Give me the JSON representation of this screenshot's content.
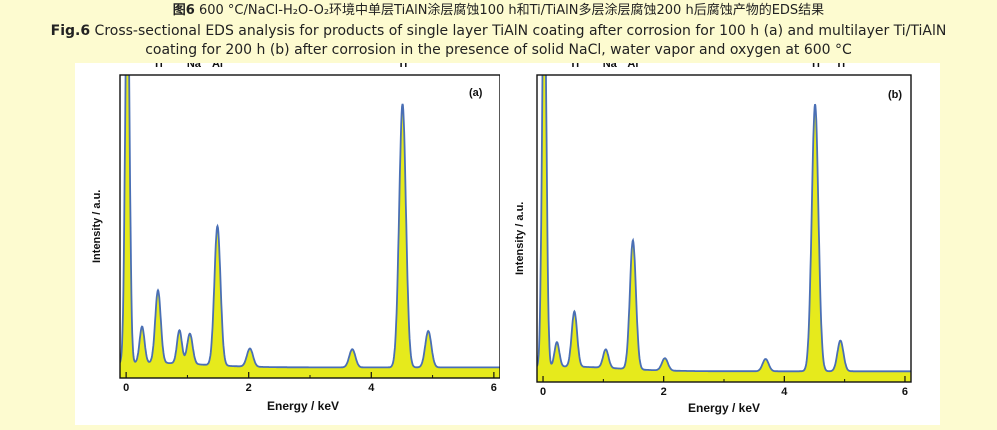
{
  "caption": {
    "cn_fig": "图6",
    "cn_text": "600 °C/NaCl-H₂O-O₂环境中单层TiAlN涂层腐蚀100 h和Ti/TiAlN多层涂层腐蚀200 h后腐蚀产物的EDS结果",
    "en_fig": "Fig.6",
    "en_line1": "Cross-sectional EDS analysis for products of single layer TiAlN coating after corrosion for 100 h (a) and multilayer Ti/TiAlN",
    "en_line2": "coating for 200 h (b) after corrosion in the presence of solid NaCl, water vapor and oxygen at 600 °C"
  },
  "colors": {
    "background": "#fdfbd0",
    "fill": "#e6ea1c",
    "outline": "#4a6fb5"
  },
  "chart_data": [
    {
      "type": "area",
      "panel": "(a)",
      "xlabel": "Energy / keV",
      "ylabel": "Intensity / a.u.",
      "xlim": [
        -0.1,
        6.1
      ],
      "ylim": [
        0,
        100
      ],
      "xticks": [
        0,
        2,
        4,
        6
      ],
      "peaks": [
        {
          "x": 0.02,
          "height": 135,
          "width": 0.035,
          "label": ""
        },
        {
          "x": 0.26,
          "height": 12,
          "width": 0.04,
          "label": ""
        },
        {
          "x": 0.52,
          "height": 24,
          "width": 0.045,
          "label": "O\nTi"
        },
        {
          "x": 0.87,
          "height": 11,
          "width": 0.04,
          "label": ""
        },
        {
          "x": 1.04,
          "height": 10,
          "width": 0.045,
          "label": "Na"
        },
        {
          "x": 1.49,
          "height": 46,
          "width": 0.05,
          "label": "Al"
        },
        {
          "x": 2.02,
          "height": 6,
          "width": 0.05,
          "label": ""
        },
        {
          "x": 3.69,
          "height": 6,
          "width": 0.05,
          "label": ""
        },
        {
          "x": 4.51,
          "height": 87,
          "width": 0.055,
          "label": "Ti"
        },
        {
          "x": 4.93,
          "height": 12,
          "width": 0.05,
          "label": ""
        }
      ]
    },
    {
      "type": "area",
      "panel": "(b)",
      "xlabel": "Energy / keV",
      "ylabel": "Intensity / a.u.",
      "xlim": [
        -0.1,
        6.1
      ],
      "ylim": [
        0,
        100
      ],
      "xticks": [
        0,
        2,
        4,
        6
      ],
      "peaks": [
        {
          "x": 0.02,
          "height": 135,
          "width": 0.035,
          "label": ""
        },
        {
          "x": 0.23,
          "height": 8,
          "width": 0.04,
          "label": ""
        },
        {
          "x": 0.52,
          "height": 18,
          "width": 0.045,
          "label": "O\nTi"
        },
        {
          "x": 1.04,
          "height": 6,
          "width": 0.045,
          "label": "Na"
        },
        {
          "x": 1.49,
          "height": 42,
          "width": 0.05,
          "label": "Al"
        },
        {
          "x": 2.02,
          "height": 4,
          "width": 0.05,
          "label": ""
        },
        {
          "x": 3.69,
          "height": 4,
          "width": 0.05,
          "label": ""
        },
        {
          "x": 4.51,
          "height": 87,
          "width": 0.055,
          "label": "Ti"
        },
        {
          "x": 4.93,
          "height": 10,
          "width": 0.05,
          "label": "Ti"
        }
      ]
    }
  ]
}
